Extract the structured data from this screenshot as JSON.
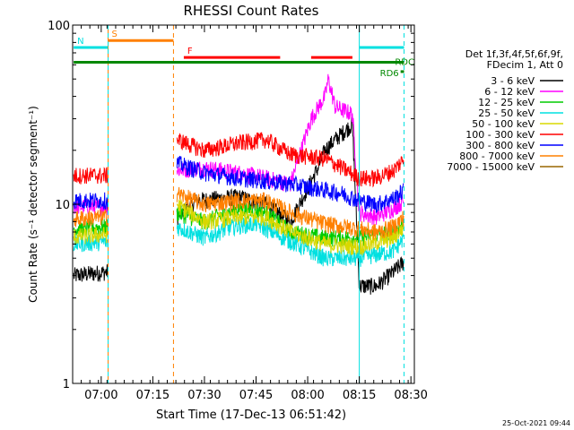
{
  "chart_data": {
    "type": "line",
    "title": "RHESSI Count Rates",
    "xlabel": "Start Time (17-Dec-13 06:51:42)",
    "ylabel": "Count Rate (s⁻¹ detector segment⁻¹)",
    "y_scale": "log",
    "ylim": [
      1,
      100
    ],
    "xlim": [
      "06:51:42",
      "08:31:00"
    ],
    "x_ticks": [
      "07:00",
      "07:15",
      "07:30",
      "07:45",
      "08:00",
      "08:15",
      "08:30"
    ],
    "y_ticks": [
      "1",
      "10",
      "100"
    ],
    "legend_header": [
      "Det 1f,3f,4f,5f,6f,9f,",
      "FDecim 1, Att 0"
    ],
    "legend_placement": "right",
    "footer_date": "25-Oct-2021 09:44",
    "series": [
      {
        "name": "3 - 6 keV",
        "color": "#000000",
        "points": [
          [
            "06:52",
            4.0
          ],
          [
            "07:02",
            4.2
          ],
          [
            "07:22",
            8.5
          ],
          [
            "07:28",
            10.5
          ],
          [
            "07:40",
            11.0
          ],
          [
            "07:48",
            10.0
          ],
          [
            "07:55",
            8.0
          ],
          [
            "08:03",
            16.0
          ],
          [
            "08:05",
            20.0
          ],
          [
            "08:08",
            23.0
          ],
          [
            "08:13",
            28.0
          ],
          [
            "08:15",
            3.5
          ],
          [
            "08:20",
            3.5
          ],
          [
            "08:25",
            4.2
          ],
          [
            "08:28",
            4.8
          ]
        ]
      },
      {
        "name": "6 - 12 keV",
        "color": "#ff00ff",
        "points": [
          [
            "06:52",
            9.7
          ],
          [
            "07:02",
            9.7
          ],
          [
            "07:22",
            15.5
          ],
          [
            "07:30",
            16.0
          ],
          [
            "07:40",
            15.0
          ],
          [
            "07:48",
            14.0
          ],
          [
            "07:55",
            13.0
          ],
          [
            "08:01",
            30.0
          ],
          [
            "08:05",
            40.0
          ],
          [
            "08:06",
            50.0
          ],
          [
            "08:08",
            35.0
          ],
          [
            "08:13",
            32.0
          ],
          [
            "08:15",
            9.0
          ],
          [
            "08:20",
            8.5
          ],
          [
            "08:25",
            9.5
          ],
          [
            "08:28",
            10.5
          ]
        ]
      },
      {
        "name": "12 - 25 keV",
        "color": "#00cc00",
        "points": [
          [
            "06:52",
            7.3
          ],
          [
            "07:02",
            7.5
          ],
          [
            "07:22",
            9.0
          ],
          [
            "07:30",
            8.0
          ],
          [
            "07:40",
            9.5
          ],
          [
            "07:48",
            9.0
          ],
          [
            "07:55",
            7.0
          ],
          [
            "08:05",
            6.5
          ],
          [
            "08:15",
            6.5
          ],
          [
            "08:25",
            7.0
          ],
          [
            "08:28",
            8.0
          ]
        ]
      },
      {
        "name": "25 - 50 keV",
        "color": "#00e0e0",
        "points": [
          [
            "06:52",
            6.0
          ],
          [
            "07:02",
            6.2
          ],
          [
            "07:22",
            7.5
          ],
          [
            "07:30",
            6.5
          ],
          [
            "07:38",
            7.5
          ],
          [
            "07:45",
            7.8
          ],
          [
            "07:55",
            6.2
          ],
          [
            "08:05",
            5.0
          ],
          [
            "08:15",
            5.0
          ],
          [
            "08:25",
            5.5
          ],
          [
            "08:28",
            6.5
          ]
        ]
      },
      {
        "name": "50 - 100 keV",
        "color": "#d8d800",
        "points": [
          [
            "06:52",
            6.6
          ],
          [
            "07:02",
            6.8
          ],
          [
            "07:22",
            10.0
          ],
          [
            "07:30",
            8.0
          ],
          [
            "07:40",
            8.5
          ],
          [
            "07:48",
            8.5
          ],
          [
            "07:55",
            7.0
          ],
          [
            "08:05",
            6.0
          ],
          [
            "08:15",
            5.8
          ],
          [
            "08:25",
            6.5
          ],
          [
            "08:28",
            7.5
          ]
        ]
      },
      {
        "name": "100 - 300 keV",
        "color": "#ff0000",
        "points": [
          [
            "06:52",
            14.5
          ],
          [
            "07:02",
            14.5
          ],
          [
            "07:22",
            23.0
          ],
          [
            "07:30",
            20.0
          ],
          [
            "07:40",
            22.0
          ],
          [
            "07:48",
            23.0
          ],
          [
            "07:55",
            19.0
          ],
          [
            "08:05",
            18.0
          ],
          [
            "08:10",
            16.0
          ],
          [
            "08:15",
            14.0
          ],
          [
            "08:20",
            14.0
          ],
          [
            "08:25",
            15.5
          ],
          [
            "08:28",
            18.0
          ]
        ]
      },
      {
        "name": "300 - 800 keV",
        "color": "#0000ff",
        "points": [
          [
            "06:52",
            10.5
          ],
          [
            "07:02",
            10.5
          ],
          [
            "07:22",
            17.0
          ],
          [
            "07:30",
            15.0
          ],
          [
            "07:40",
            14.0
          ],
          [
            "07:48",
            13.5
          ],
          [
            "07:55",
            13.0
          ],
          [
            "08:05",
            12.0
          ],
          [
            "08:10",
            11.5
          ],
          [
            "08:15",
            10.5
          ],
          [
            "08:20",
            10.0
          ],
          [
            "08:25",
            10.8
          ],
          [
            "08:28",
            12.0
          ]
        ]
      },
      {
        "name": "800 - 7000 keV",
        "color": "#ff8000",
        "points": [
          [
            "06:52",
            8.3
          ],
          [
            "07:02",
            8.5
          ],
          [
            "07:22",
            11.5
          ],
          [
            "07:30",
            10.0
          ],
          [
            "07:40",
            10.5
          ],
          [
            "07:48",
            10.5
          ],
          [
            "07:55",
            9.0
          ],
          [
            "08:05",
            7.8
          ],
          [
            "08:15",
            7.3
          ],
          [
            "08:20",
            7.0
          ],
          [
            "08:25",
            7.5
          ],
          [
            "08:28",
            8.5
          ]
        ]
      },
      {
        "name": "7000 - 15000 keV",
        "color": "#996600",
        "points": []
      }
    ],
    "annotations": [
      {
        "label": "S",
        "color": "#ff8000",
        "start": "07:02",
        "end": "07:21",
        "level": 82
      },
      {
        "label": "N",
        "color": "#00e0e0",
        "start": "06:52",
        "end": "07:02",
        "level": 75
      },
      {
        "label": "F",
        "color": "#ff0000",
        "start": "07:24",
        "end": "07:52",
        "level": 66
      },
      {
        "label": "",
        "color": "#ff0000",
        "start": "08:01",
        "end": "08:13",
        "level": 66
      },
      {
        "label": "",
        "color": "#00e0e0",
        "start": "08:15",
        "end": "08:28",
        "level": 75
      },
      {
        "label": "RDC",
        "color": "#008800",
        "start": "06:52",
        "end": "08:28",
        "level": 62
      },
      {
        "label": "RD6",
        "color": "#008800",
        "start": "08:27",
        "end": "08:28",
        "level": 55
      }
    ],
    "vertical_markers": [
      {
        "time": "07:02",
        "color": "#ff8000",
        "style": "solid"
      },
      {
        "time": "07:02",
        "color": "#00e0e0",
        "style": "dashed"
      },
      {
        "time": "07:21",
        "color": "#ff8000",
        "style": "dashed"
      },
      {
        "time": "08:15",
        "color": "#00e0e0",
        "style": "solid"
      },
      {
        "time": "08:28",
        "color": "#00e0e0",
        "style": "dashed"
      }
    ]
  }
}
